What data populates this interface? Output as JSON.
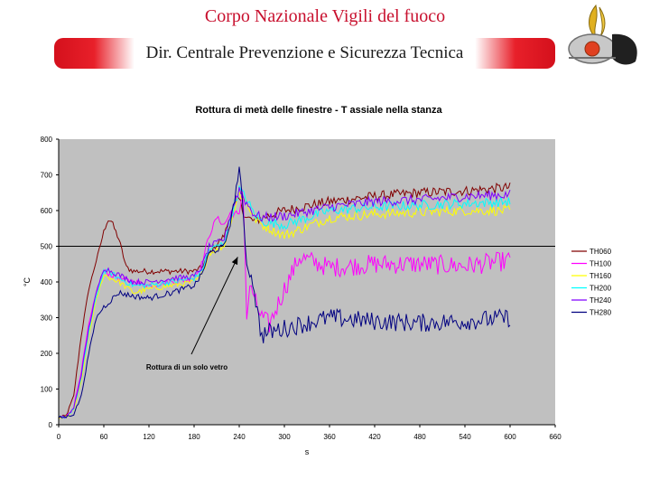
{
  "header": {
    "organization": "Corpo Nazionale Vigili del fuoco",
    "department": "Dir. Centrale Prevenzione e Sicurezza Tecnica"
  },
  "colors": {
    "title_red": "#c8102e",
    "banner_red": "#d4101c",
    "plot_bg": "#c0c0c0"
  },
  "chart_data": {
    "type": "line",
    "title": "Rottura di metà delle finestre - T assiale nella stanza",
    "xlabel": "s",
    "ylabel": "°C",
    "xlim": [
      0,
      660
    ],
    "ylim": [
      0,
      800
    ],
    "xticks": [
      0,
      60,
      120,
      180,
      240,
      300,
      360,
      420,
      480,
      540,
      600,
      660
    ],
    "yticks": [
      0,
      100,
      200,
      300,
      400,
      500,
      600,
      700,
      800
    ],
    "grid": "horizontal line at 500",
    "legend_position": "right",
    "annotation": {
      "text": "Rottura di un solo vetro",
      "points_to": [
        238,
        470
      ]
    },
    "series": [
      {
        "name": "TH060",
        "color": "#800000",
        "x": [
          0,
          10,
          20,
          30,
          40,
          50,
          60,
          65,
          70,
          80,
          90,
          100,
          120,
          150,
          180,
          190,
          200,
          220,
          230,
          240,
          245,
          250,
          260,
          270,
          300,
          360,
          420,
          480,
          540,
          600
        ],
        "y": [
          20,
          25,
          80,
          250,
          380,
          460,
          540,
          575,
          570,
          520,
          440,
          430,
          430,
          430,
          430,
          440,
          480,
          530,
          600,
          630,
          600,
          580,
          570,
          580,
          600,
          625,
          640,
          650,
          655,
          665
        ]
      },
      {
        "name": "TH100",
        "color": "#ff00ff",
        "x": [
          0,
          10,
          20,
          30,
          40,
          50,
          60,
          70,
          80,
          100,
          120,
          150,
          180,
          190,
          200,
          210,
          220,
          230,
          240,
          245,
          250,
          255,
          260,
          270,
          280,
          300,
          320,
          360,
          420,
          480,
          540,
          600
        ],
        "y": [
          20,
          22,
          50,
          150,
          280,
          370,
          430,
          420,
          410,
          400,
          390,
          400,
          410,
          450,
          530,
          580,
          560,
          600,
          580,
          680,
          300,
          400,
          350,
          300,
          280,
          380,
          470,
          440,
          450,
          450,
          445,
          460
        ]
      },
      {
        "name": "TH160",
        "color": "#ffff00",
        "x": [
          0,
          10,
          20,
          30,
          40,
          50,
          60,
          70,
          80,
          100,
          120,
          150,
          180,
          190,
          200,
          220,
          230,
          240,
          250,
          260,
          270,
          300,
          360,
          420,
          480,
          540,
          600
        ],
        "y": [
          20,
          22,
          40,
          120,
          250,
          350,
          420,
          410,
          400,
          370,
          380,
          390,
          400,
          420,
          480,
          500,
          580,
          650,
          620,
          580,
          560,
          530,
          580,
          590,
          595,
          600,
          600
        ]
      },
      {
        "name": "TH200",
        "color": "#00ffff",
        "x": [
          0,
          10,
          20,
          30,
          40,
          50,
          60,
          70,
          80,
          100,
          120,
          150,
          180,
          190,
          200,
          220,
          230,
          240,
          250,
          260,
          270,
          300,
          360,
          420,
          480,
          540,
          600
        ],
        "y": [
          20,
          22,
          45,
          130,
          260,
          360,
          430,
          425,
          410,
          390,
          390,
          400,
          410,
          430,
          490,
          510,
          590,
          660,
          630,
          590,
          570,
          560,
          600,
          610,
          615,
          620,
          625
        ]
      },
      {
        "name": "TH240",
        "color": "#8000ff",
        "x": [
          0,
          10,
          20,
          30,
          40,
          50,
          60,
          70,
          80,
          100,
          120,
          150,
          180,
          190,
          200,
          220,
          230,
          240,
          250,
          260,
          270,
          300,
          360,
          420,
          480,
          540,
          600
        ],
        "y": [
          20,
          22,
          45,
          140,
          270,
          370,
          440,
          430,
          420,
          400,
          400,
          410,
          415,
          440,
          500,
          520,
          600,
          660,
          620,
          590,
          580,
          585,
          610,
          625,
          630,
          640,
          645
        ]
      },
      {
        "name": "TH280",
        "color": "#000080",
        "x": [
          0,
          10,
          20,
          30,
          40,
          50,
          60,
          70,
          80,
          100,
          120,
          150,
          180,
          190,
          200,
          220,
          230,
          240,
          245,
          250,
          255,
          260,
          265,
          270,
          280,
          300,
          360,
          420,
          480,
          540,
          600
        ],
        "y": [
          20,
          22,
          30,
          80,
          200,
          300,
          330,
          350,
          370,
          360,
          355,
          370,
          390,
          420,
          480,
          500,
          580,
          720,
          600,
          450,
          420,
          380,
          300,
          250,
          260,
          270,
          300,
          290,
          285,
          290,
          300
        ]
      }
    ]
  }
}
